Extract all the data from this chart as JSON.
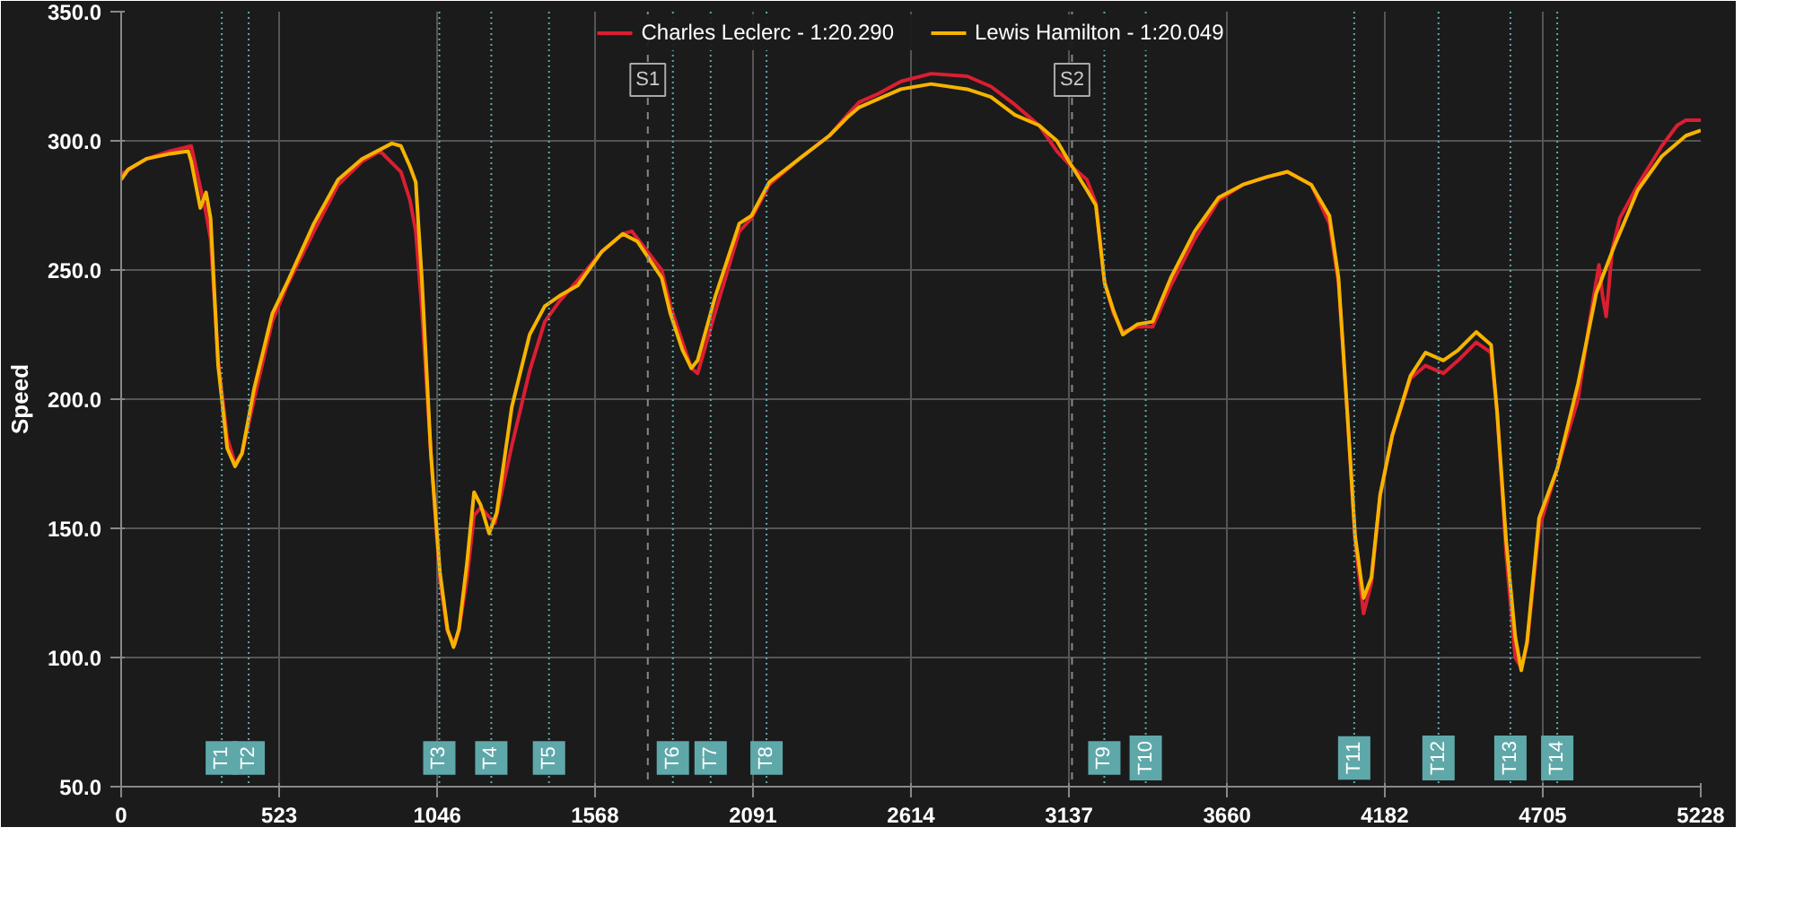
{
  "chart_data": {
    "type": "line",
    "ylabel": "Speed",
    "legend": "top",
    "grid": true,
    "marker": "none",
    "line_style": "solid",
    "xlim": [
      0,
      5228
    ],
    "xticks": [
      0,
      523,
      1046,
      1568,
      2091,
      2614,
      3137,
      3660,
      4182,
      4705,
      5228
    ],
    "ylim": [
      50,
      350
    ],
    "yticks": [
      {
        "value": 50,
        "label": "50.0"
      },
      {
        "value": 100,
        "label": "100.0"
      },
      {
        "value": 150,
        "label": "150.0"
      },
      {
        "value": 200,
        "label": "200.0"
      },
      {
        "value": 250,
        "label": "250.0"
      },
      {
        "value": 300,
        "label": "300.0"
      },
      {
        "value": 350,
        "label": "350.0"
      }
    ],
    "series": [
      {
        "name": "Charles Leclerc - 1:20.290",
        "color": "#dc1e32",
        "x": [
          0,
          83,
          162,
          232,
          262,
          281,
          296,
          321,
          351,
          377,
          400,
          440,
          500,
          549,
          638,
          718,
          797,
          857,
          926,
          956,
          975,
          995,
          1025,
          1055,
          1080,
          1104,
          1118,
          1144,
          1168,
          1190,
          1237,
          1293,
          1352,
          1402,
          1451,
          1511,
          1590,
          1660,
          1690,
          1789,
          1818,
          1858,
          1887,
          1908,
          1967,
          2046,
          2086,
          2145,
          2244,
          2344,
          2403,
          2443,
          2502,
          2581,
          2681,
          2800,
          2879,
          2958,
          3038,
          3097,
          3137,
          3196,
          3226,
          3255,
          3285,
          3315,
          3364,
          3414,
          3474,
          3553,
          3632,
          3712,
          3791,
          3860,
          3939,
          3999,
          4029,
          4058,
          4084,
          4112,
          4138,
          4167,
          4207,
          4267,
          4317,
          4376,
          4425,
          4485,
          4534,
          4554,
          4584,
          4614,
          4634,
          4653,
          4693,
          4753,
          4822,
          4860,
          4891,
          4903,
          4915,
          4935,
          4960,
          5020,
          5099,
          5150,
          5179,
          5228
        ],
        "values": [
          287,
          293,
          296,
          298,
          282,
          272,
          262,
          215,
          185,
          175,
          179,
          200,
          230,
          244,
          265,
          283,
          292,
          296,
          288,
          277,
          265,
          235,
          179,
          130,
          110,
          105,
          111,
          130,
          155,
          158,
          152,
          182,
          211,
          230,
          238,
          246,
          257,
          264,
          265,
          250,
          236,
          222,
          212,
          210,
          234,
          265,
          270,
          283,
          293,
          302,
          310,
          315,
          318,
          323,
          326,
          325,
          321,
          314,
          306,
          296,
          291,
          285,
          276,
          245,
          233,
          226,
          228,
          228,
          244,
          262,
          277,
          283,
          286,
          288,
          283,
          268,
          245,
          195,
          145,
          117,
          129,
          163,
          186,
          208,
          213,
          210,
          215,
          222,
          218,
          195,
          140,
          100,
          96,
          105,
          150,
          173,
          200,
          230,
          252,
          240,
          232,
          258,
          270,
          283,
          298,
          306,
          308,
          308
        ]
      },
      {
        "name": "Lewis Hamilton - 1:20.049",
        "color": "#f5b400",
        "x": [
          0,
          24,
          83,
          162,
          222,
          232,
          262,
          281,
          296,
          321,
          351,
          377,
          400,
          440,
          500,
          549,
          638,
          718,
          797,
          896,
          926,
          956,
          975,
          995,
          1025,
          1055,
          1080,
          1100,
          1118,
          1144,
          1168,
          1190,
          1218,
          1243,
          1293,
          1352,
          1402,
          1451,
          1511,
          1590,
          1660,
          1709,
          1789,
          1818,
          1858,
          1887,
          1908,
          1967,
          2046,
          2086,
          2145,
          2244,
          2344,
          2403,
          2443,
          2502,
          2581,
          2681,
          2800,
          2879,
          2958,
          3038,
          3097,
          3137,
          3196,
          3226,
          3255,
          3285,
          3315,
          3364,
          3414,
          3474,
          3553,
          3632,
          3712,
          3791,
          3860,
          3939,
          3999,
          4029,
          4058,
          4084,
          4112,
          4138,
          4167,
          4207,
          4267,
          4317,
          4376,
          4425,
          4485,
          4534,
          4554,
          4584,
          4614,
          4634,
          4653,
          4693,
          4753,
          4822,
          4882,
          4941,
          5020,
          5099,
          5179,
          5228
        ],
        "values": [
          285,
          289,
          293,
          295,
          296,
          292,
          274,
          280,
          270,
          213,
          181,
          174,
          179,
          204,
          233,
          245,
          268,
          285,
          293,
          299,
          298,
          290,
          284,
          247,
          179,
          133,
          111,
          104,
          111,
          136,
          164,
          159,
          148,
          156,
          197,
          225,
          236,
          240,
          244,
          257,
          264,
          261,
          247,
          233,
          219,
          212,
          215,
          240,
          268,
          271,
          284,
          293,
          302,
          309,
          313,
          316,
          320,
          322,
          320,
          317,
          310,
          306,
          300,
          292,
          281,
          275,
          245,
          234,
          225,
          229,
          230,
          247,
          265,
          278,
          283,
          286,
          288,
          283,
          271,
          247,
          195,
          147,
          123,
          131,
          163,
          186,
          209,
          218,
          215,
          219,
          226,
          221,
          195,
          145,
          108,
          95,
          106,
          154,
          173,
          206,
          241,
          259,
          281,
          294,
          302,
          304
        ]
      }
    ],
    "ref_lines": [
      {
        "axis": "x",
        "value": 333,
        "label": "T1",
        "color": "#5fa8aa",
        "line_style": "dotted"
      },
      {
        "axis": "x",
        "value": 422,
        "label": "T2",
        "color": "#5fa8aa",
        "line_style": "dotted"
      },
      {
        "axis": "x",
        "value": 1053,
        "label": "T3",
        "color": "#5fa8aa",
        "line_style": "dotted"
      },
      {
        "axis": "x",
        "value": 1225,
        "label": "T4",
        "color": "#5fa8aa",
        "line_style": "dotted"
      },
      {
        "axis": "x",
        "value": 1416,
        "label": "T5",
        "color": "#5fa8aa",
        "line_style": "dotted"
      },
      {
        "axis": "x",
        "value": 1826,
        "label": "T6",
        "color": "#5fa8aa",
        "line_style": "dotted"
      },
      {
        "axis": "x",
        "value": 1951,
        "label": "T7",
        "color": "#5fa8aa",
        "line_style": "dotted"
      },
      {
        "axis": "x",
        "value": 2136,
        "label": "T8",
        "color": "#5fa8aa",
        "line_style": "dotted"
      },
      {
        "axis": "x",
        "value": 3254,
        "label": "T9",
        "color": "#5fa8aa",
        "line_style": "dotted"
      },
      {
        "axis": "x",
        "value": 3391,
        "label": "T10",
        "color": "#5fa8aa",
        "line_style": "dotted"
      },
      {
        "axis": "x",
        "value": 4081,
        "label": "T11",
        "color": "#5fa8aa",
        "line_style": "dotted"
      },
      {
        "axis": "x",
        "value": 4360,
        "label": "T12",
        "color": "#5fa8aa",
        "line_style": "dotted"
      },
      {
        "axis": "x",
        "value": 4598,
        "label": "T13",
        "color": "#5fa8aa",
        "line_style": "dotted"
      },
      {
        "axis": "x",
        "value": 4753,
        "label": "T14",
        "color": "#5fa8aa",
        "line_style": "dotted"
      },
      {
        "axis": "x",
        "value": 1743,
        "label": "S1",
        "color": "#888888",
        "line_style": "dashed"
      },
      {
        "axis": "x",
        "value": 3147,
        "label": "S2",
        "color": "#888888",
        "line_style": "dashed"
      }
    ]
  }
}
